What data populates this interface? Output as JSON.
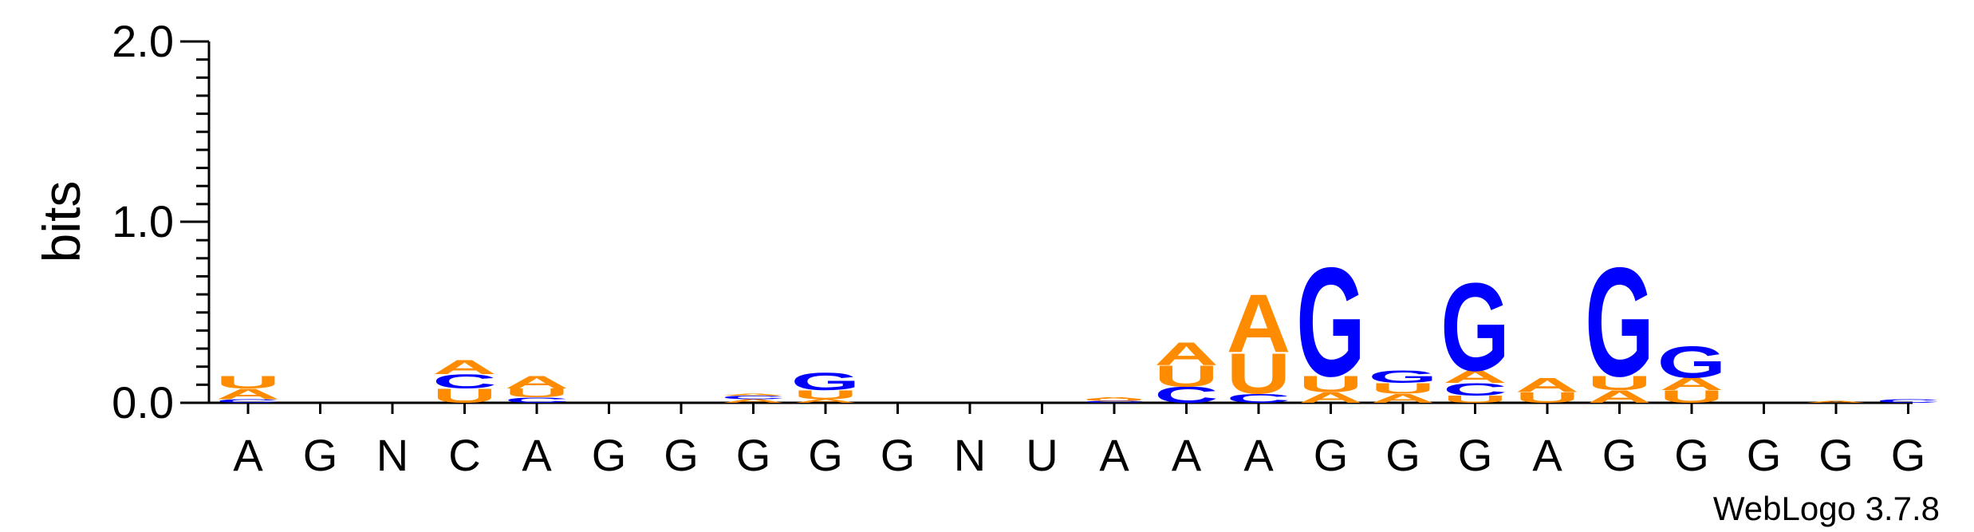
{
  "chart_data": {
    "type": "sequence-logo",
    "ylabel": "bits",
    "ylim": [
      0,
      2.0
    ],
    "yticks": [
      "0.0",
      "1.0",
      "2.0"
    ],
    "positions": [
      "A",
      "G",
      "N",
      "C",
      "A",
      "G",
      "G",
      "G",
      "G",
      "G",
      "N",
      "U",
      "A",
      "A",
      "A",
      "G",
      "G",
      "G",
      "A",
      "G",
      "G",
      "G",
      "G",
      "G"
    ],
    "colors": {
      "A": "#ff8c00",
      "U": "#ff8c00",
      "C": "#0000ff",
      "G": "#0000ff"
    },
    "stacks": [
      [
        [
          "C",
          0.02
        ],
        [
          "A",
          0.06
        ],
        [
          "U",
          0.07
        ]
      ],
      [],
      [],
      [
        [
          "U",
          0.08
        ],
        [
          "C",
          0.08
        ],
        [
          "A",
          0.08
        ]
      ],
      [
        [
          "C",
          0.03
        ],
        [
          "U",
          0.05
        ],
        [
          "A",
          0.07
        ]
      ],
      [],
      [],
      [
        [
          "A",
          0.02
        ],
        [
          "C",
          0.02
        ],
        [
          "A",
          0.01
        ]
      ],
      [
        [
          "A",
          0.02
        ],
        [
          "U",
          0.05
        ],
        [
          "G",
          0.1
        ]
      ],
      [],
      [],
      [],
      [
        [
          "C",
          0.01
        ],
        [
          "U",
          0.01
        ],
        [
          "A",
          0.01
        ]
      ],
      [
        [
          "C",
          0.09
        ],
        [
          "U",
          0.12
        ],
        [
          "A",
          0.13
        ]
      ],
      [
        [
          "C",
          0.05
        ],
        [
          "U",
          0.23
        ],
        [
          "A",
          0.33
        ]
      ],
      [
        [
          "A",
          0.06
        ],
        [
          "U",
          0.09
        ],
        [
          "G",
          0.62
        ]
      ],
      [
        [
          "A",
          0.05
        ],
        [
          "U",
          0.06
        ],
        [
          "G",
          0.07
        ]
      ],
      [
        [
          "U",
          0.04
        ],
        [
          "C",
          0.07
        ],
        [
          "A",
          0.07
        ],
        [
          "G",
          0.5
        ]
      ],
      [
        [
          "U",
          0.06
        ],
        [
          "A",
          0.08
        ]
      ],
      [
        [
          "A",
          0.07
        ],
        [
          "U",
          0.08
        ],
        [
          "G",
          0.62
        ]
      ],
      [
        [
          "U",
          0.07
        ],
        [
          "A",
          0.07
        ],
        [
          "G",
          0.18
        ]
      ],
      [],
      [
        [
          "A",
          0.01
        ]
      ],
      [
        [
          "C",
          0.02
        ]
      ]
    ]
  },
  "credit": "WebLogo 3.7.8"
}
